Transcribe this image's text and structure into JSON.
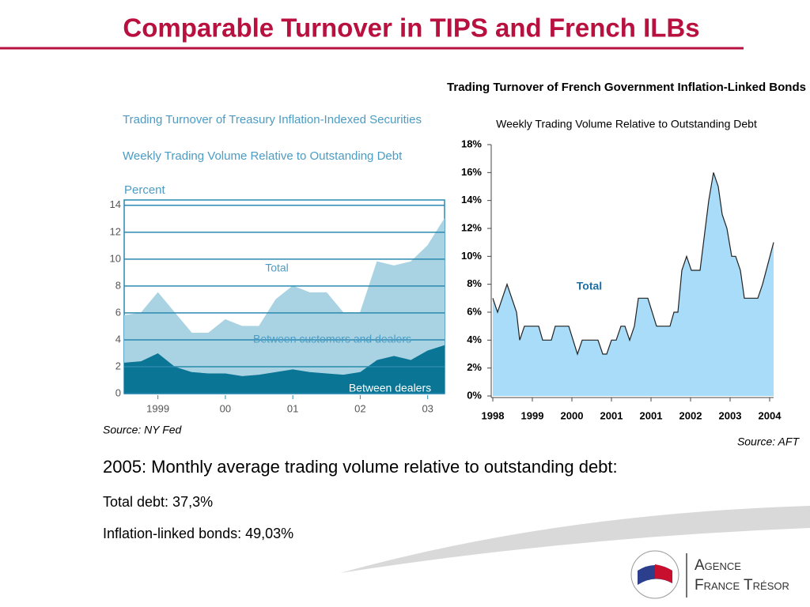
{
  "title": "Comparable Turnover in TIPS and French ILBs",
  "chart_data": [
    {
      "type": "area",
      "stacked": true,
      "title": "Trading Turnover of Treasury Inflation-Indexed Securities",
      "subtitle": "Weekly Trading Volume Relative to Outstanding Debt",
      "y_label": "Percent",
      "annotations": [
        "Total"
      ],
      "source": "Source: NY Fed",
      "x": [
        1998.5,
        1998.75,
        1999.0,
        1999.25,
        1999.5,
        1999.75,
        2000.0,
        2000.25,
        2000.5,
        2000.75,
        2001.0,
        2001.25,
        2001.5,
        2001.75,
        2002.0,
        2002.25,
        2002.5,
        2002.75,
        2003.0,
        2003.25
      ],
      "series": [
        {
          "name": "Between dealers",
          "color": "#0b7595",
          "values": [
            2.3,
            2.4,
            3.0,
            2.0,
            1.6,
            1.5,
            1.5,
            1.3,
            1.4,
            1.6,
            1.8,
            1.6,
            1.5,
            1.4,
            1.6,
            2.5,
            2.8,
            2.5,
            3.2,
            3.6
          ]
        },
        {
          "name": "Between customers and dealers",
          "color": "#a9d3e3",
          "values": [
            3.5,
            3.6,
            4.5,
            4.0,
            2.9,
            3.0,
            4.0,
            3.7,
            3.6,
            5.4,
            6.2,
            5.9,
            6.0,
            4.6,
            4.4,
            7.3,
            6.7,
            7.3,
            7.8,
            9.4
          ]
        }
      ],
      "xlim": [
        1998.5,
        2003.25
      ],
      "xticks": [
        1999,
        {
          "value": 2000,
          "label": "00"
        },
        {
          "value": 2001,
          "label": "01"
        },
        {
          "value": 2002,
          "label": "02"
        },
        {
          "value": 2003,
          "label": "03"
        }
      ],
      "ylim": [
        0,
        14.4
      ],
      "yticks": [
        0,
        2,
        4,
        6,
        8,
        10,
        12,
        14
      ],
      "grid": true
    },
    {
      "type": "area",
      "title": "Trading Turnover of French Government Inflation-Linked Bonds",
      "subtitle": "Weekly Trading Volume Relative to Outstanding Debt",
      "annotations": [
        "Total"
      ],
      "source": "Source: AFT",
      "x": [
        0,
        0.12,
        0.36,
        0.6,
        0.68,
        0.8,
        1.16,
        1.26,
        1.48,
        1.58,
        1.92,
        2.14,
        2.26,
        2.66,
        2.78,
        2.88,
        3.0,
        3.12,
        3.24,
        3.34,
        3.46,
        3.58,
        3.68,
        3.92,
        4.14,
        4.48,
        4.58,
        4.68,
        4.78,
        4.9,
        5.02,
        5.24,
        5.46,
        5.58,
        5.7,
        5.8,
        5.92,
        6.04,
        6.14,
        6.26,
        6.36,
        6.7,
        6.82,
        7.1
      ],
      "series": [
        {
          "name": "Total",
          "color": "#a8dcf8",
          "values": [
            7,
            6,
            8,
            6,
            4,
            5,
            5,
            4,
            4,
            5,
            5,
            3,
            4,
            4,
            3,
            3,
            4,
            4,
            5,
            5,
            4,
            5,
            7,
            7,
            5,
            5,
            6,
            6,
            9,
            10,
            9,
            9,
            14,
            16,
            15,
            13,
            12,
            10,
            10,
            9,
            7,
            7,
            8,
            11
          ]
        }
      ],
      "xlim": [
        0,
        7.1
      ],
      "xticks": [
        {
          "value": 0,
          "label": "1998"
        },
        {
          "value": 1,
          "label": "1999"
        },
        {
          "value": 2,
          "label": "2000"
        },
        {
          "value": 3,
          "label": "2001"
        },
        {
          "value": 4,
          "label": "2001"
        },
        {
          "value": 5,
          "label": "2002"
        },
        {
          "value": 6,
          "label": "2003"
        },
        {
          "value": 7,
          "label": "2004"
        }
      ],
      "ylim": [
        0,
        18
      ],
      "yticks": [
        {
          "value": 0,
          "label": "0%"
        },
        {
          "value": 2,
          "label": "2%"
        },
        {
          "value": 4,
          "label": "4%"
        },
        {
          "value": 6,
          "label": "6%"
        },
        {
          "value": 8,
          "label": "8%"
        },
        {
          "value": 10,
          "label": "10%"
        },
        {
          "value": 12,
          "label": "12%"
        },
        {
          "value": 14,
          "label": "14%"
        },
        {
          "value": 16,
          "label": "16%"
        },
        {
          "value": 18,
          "label": "18%"
        }
      ],
      "grid": false
    }
  ],
  "notes": {
    "heading": "2005: Monthly average trading volume relative to outstanding debt:",
    "lines": [
      "Total debt: 37,3%",
      "Inflation-linked bonds: 49,03%"
    ]
  },
  "logo": {
    "line1": "Agence",
    "line2": "France Trésor"
  }
}
